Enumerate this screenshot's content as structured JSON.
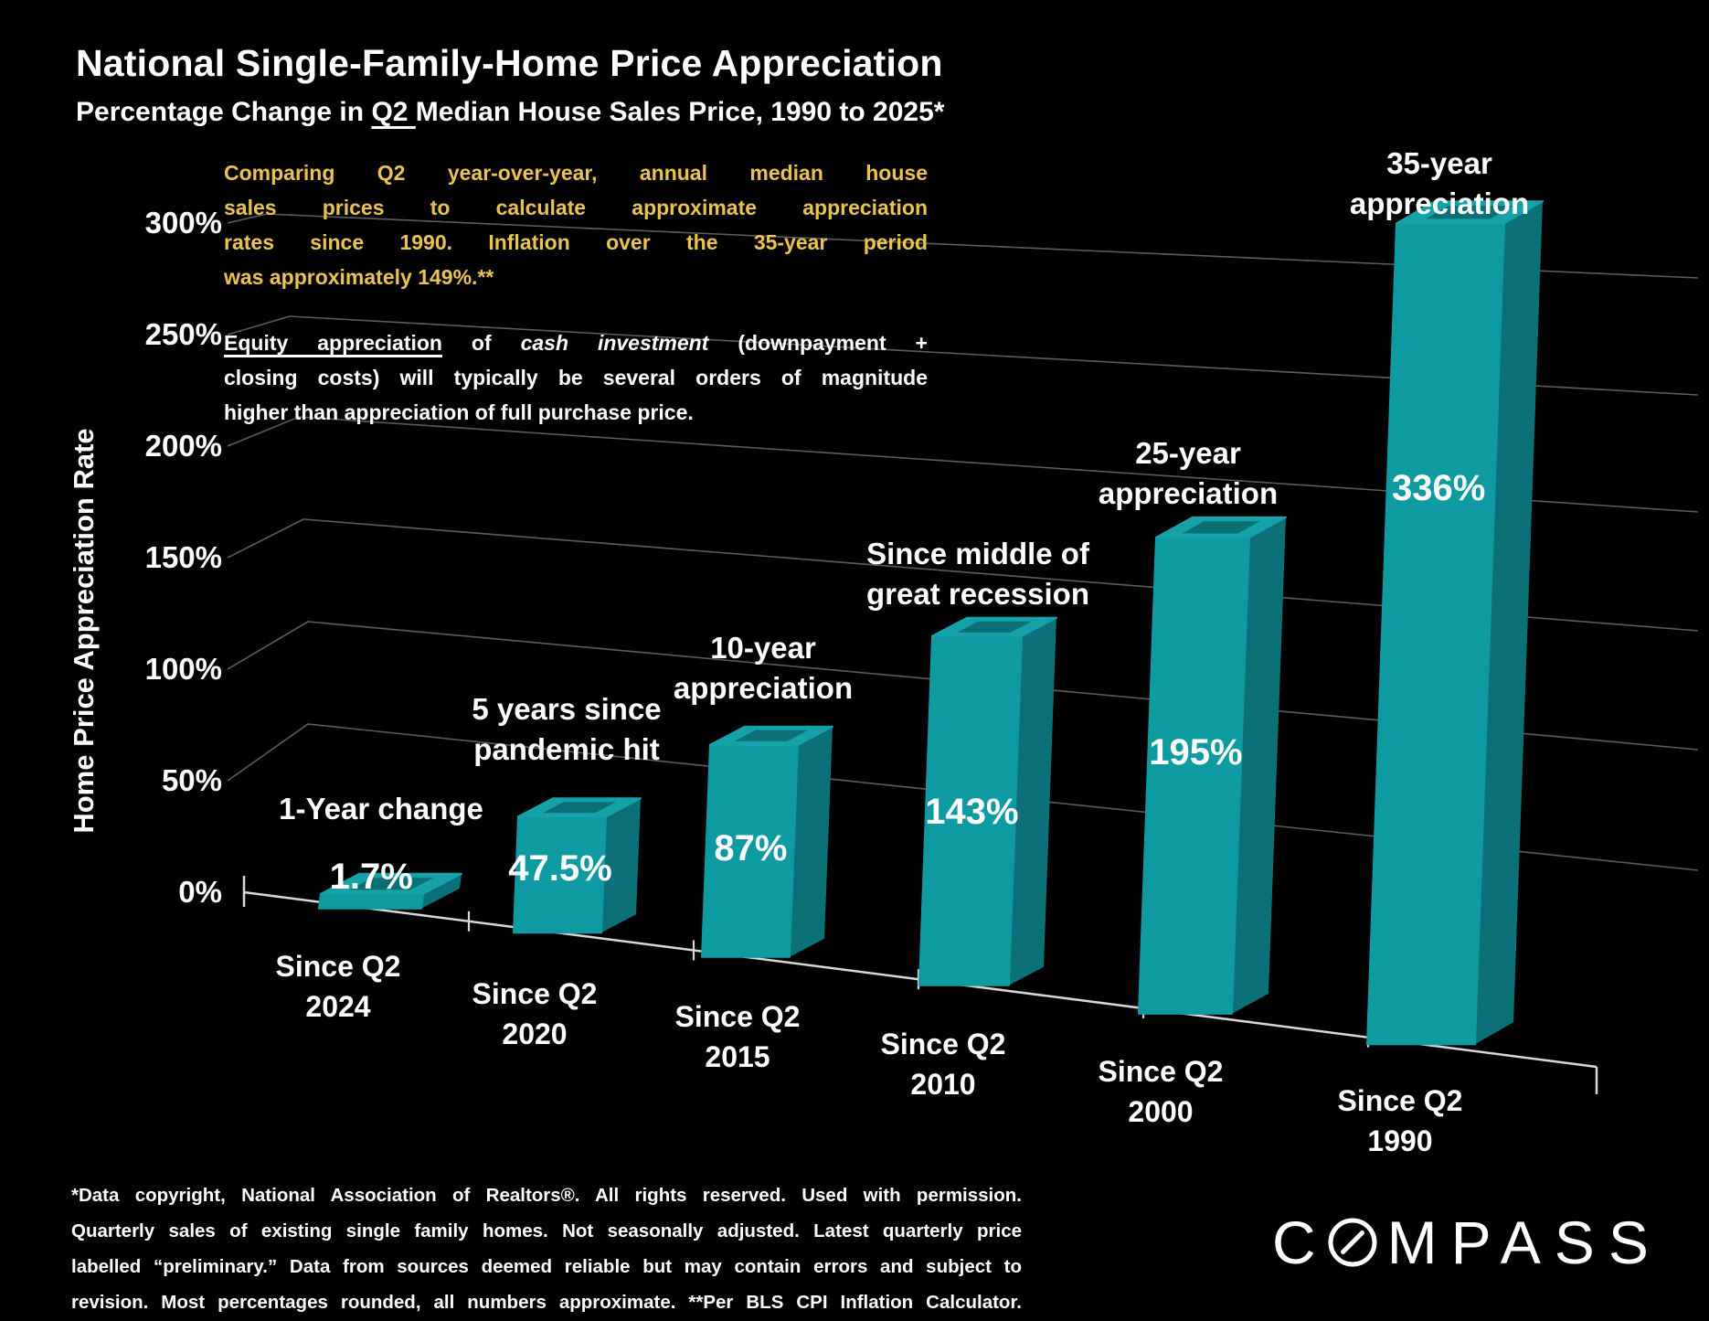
{
  "header": {
    "title": "National Single-Family-Home Price Appreciation",
    "subtitle_prefix": "Percentage Change in ",
    "subtitle_underlined": "Q2 ",
    "subtitle_suffix": "Median House Sales Price, 1990 to 2025*"
  },
  "notes": {
    "methodology_lines": [
      "Comparing Q2 year-over-year, annual median house",
      "sales prices to calculate approximate appreciation",
      "rates since 1990. Inflation over the 35-year period",
      "was approximately 149%.**"
    ],
    "methodology_color": "#E9C44F",
    "equity_underlined": "Equity appreciation",
    "equity_mid": " of ",
    "equity_italic": "cash investment",
    "equity_line1_rest": " (downpayment +",
    "equity_line2": "closing costs) will typically be several orders of magnitude",
    "equity_line3": "higher than appreciation of full purchase price."
  },
  "chart_data": {
    "type": "bar",
    "title": "Percentage Change in Q2 Median House Sales Price, 1990 to 2025",
    "ylabel": "Home Price Appreciation Rate",
    "ylim": [
      0,
      300
    ],
    "y_tick_labels": [
      "0%",
      "50%",
      "100%",
      "150%",
      "200%",
      "250%",
      "300%"
    ],
    "categories": [
      "Since Q2 2024",
      "Since Q2 2020",
      "Since Q2 2015",
      "Since Q2 2010",
      "Since Q2 2000",
      "Since Q2 1990"
    ],
    "values": [
      1.7,
      47.5,
      87,
      143,
      195,
      336
    ],
    "value_labels": [
      "1.7%",
      "47.5%",
      "87%",
      "143%",
      "195%",
      "336%"
    ],
    "bar_annotations": [
      [
        "1-Year change"
      ],
      [
        "5 years since",
        "pandemic hit"
      ],
      [
        "10-year",
        "appreciation"
      ],
      [
        "Since middle of",
        "great recession"
      ],
      [
        "25-year",
        "appreciation"
      ],
      [
        "35-year",
        "appreciation"
      ]
    ],
    "legend": "none",
    "grid": "on",
    "perspective": "3d",
    "bar_color": "#0D9AA1",
    "bar_side_color": "#0C7079",
    "bar_top_color": "#15A1A8",
    "bar_top_inset_color": "#0B6F76",
    "grid_color": "#9A9A9A",
    "axis_color": "#D8D8D8",
    "label_color": "#FFFFFF"
  },
  "footer": {
    "lines": [
      "*Data copyright, National Association of Realtors®. All rights reserved. Used with permission.",
      "Quarterly sales of existing single family homes. Not seasonally adjusted. Latest quarterly price",
      "labelled “preliminary.” Data from sources deemed reliable but may contain errors and subject to",
      "revision. Most percentages rounded, all numbers  approximate. **Per BLS CPI Inflation Calculator."
    ]
  },
  "logo": {
    "text": "COMPASS"
  }
}
